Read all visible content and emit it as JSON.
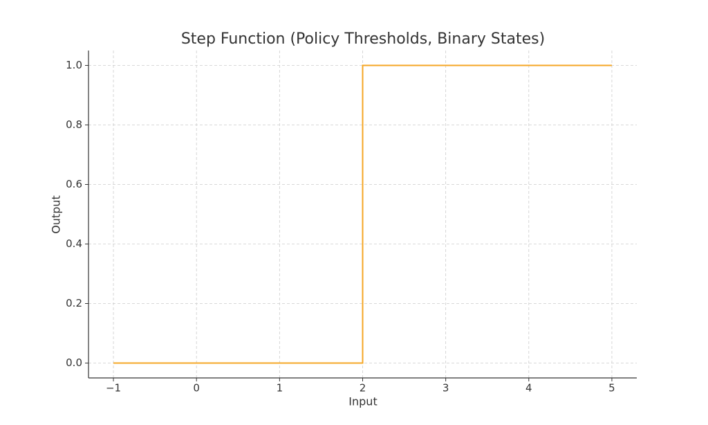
{
  "chart_data": {
    "type": "line",
    "title": "Step Function (Policy Thresholds, Binary States)",
    "x_label": "Input",
    "y_label": "Output",
    "x": [
      -1,
      2,
      2,
      5
    ],
    "series": [
      {
        "color": "#f5a623",
        "values": [
          0,
          0,
          1,
          1
        ]
      }
    ],
    "xlim": [
      -1.3,
      5.3
    ],
    "xticks": [
      {
        "value": -1,
        "label": "−1"
      },
      0,
      1,
      2,
      3,
      4,
      5
    ],
    "ylim": [
      -0.05,
      1.05
    ],
    "yticks": [
      {
        "value": 0,
        "label": "0.0"
      },
      {
        "value": 0.2,
        "label": "0.2"
      },
      {
        "value": 0.4,
        "label": "0.4"
      },
      {
        "value": 0.6,
        "label": "0.6"
      },
      {
        "value": 0.8,
        "label": "0.8"
      },
      {
        "value": 1,
        "label": "1.0"
      }
    ],
    "grid": true
  }
}
